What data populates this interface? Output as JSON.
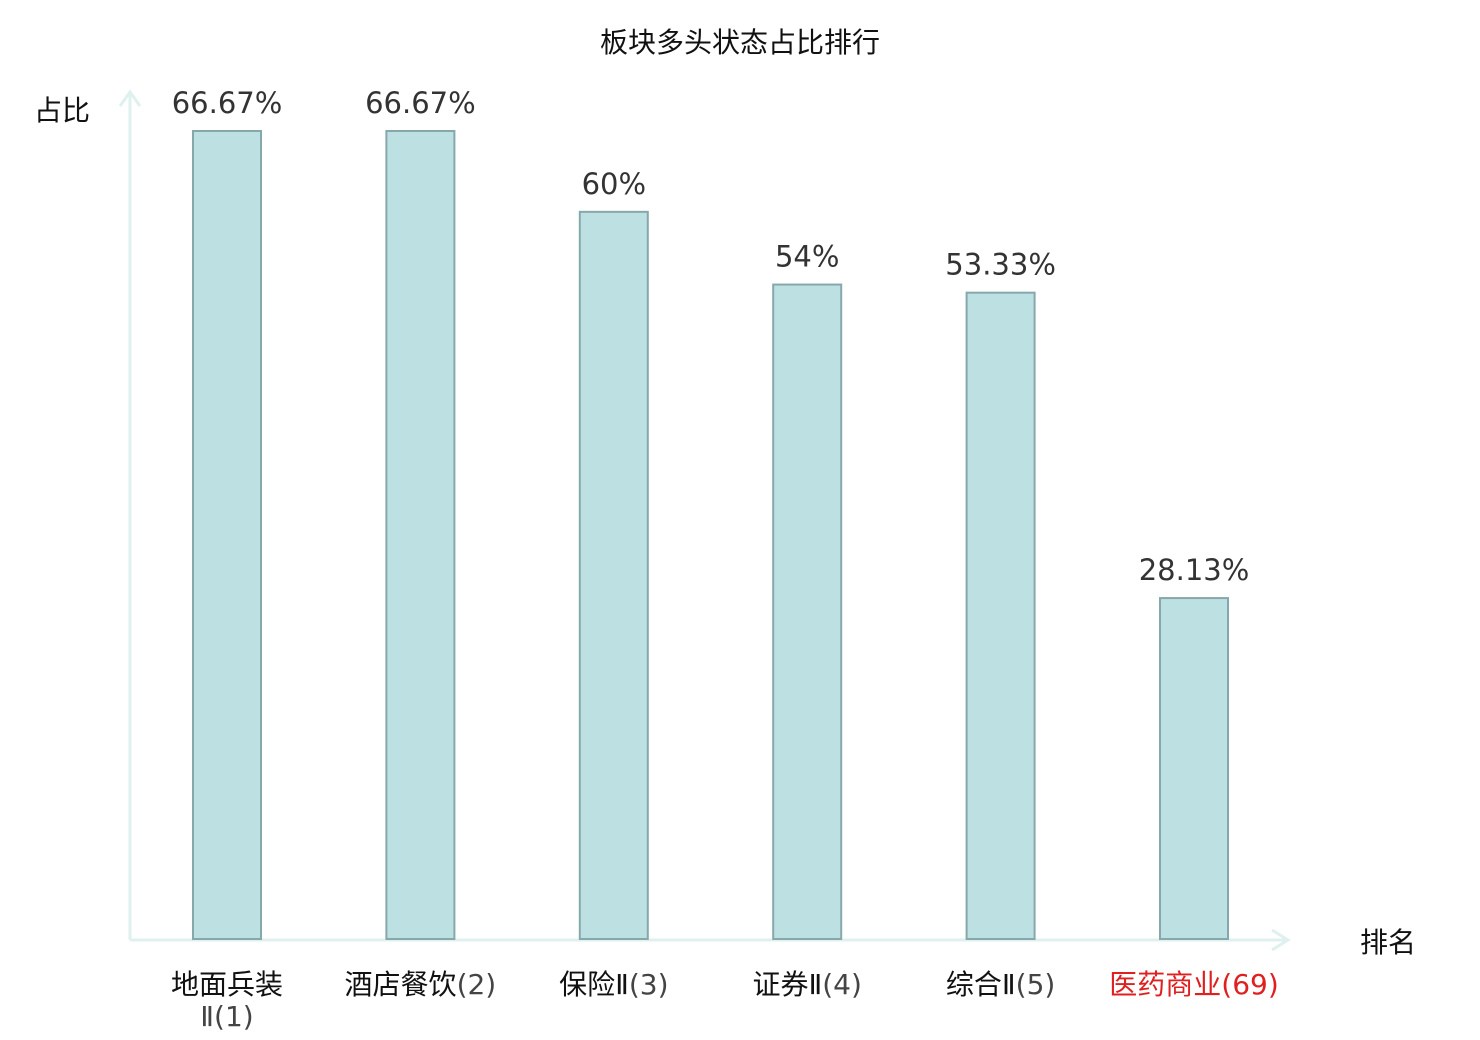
{
  "chart_data": {
    "type": "bar",
    "title": "板块多头状态占比排行",
    "ylabel": "占比",
    "xlabel": "排名",
    "ylim": [
      0,
      70
    ],
    "grid": false,
    "categories": [
      {
        "name": "地面兵装Ⅱ",
        "rank": "(1)",
        "highlight": false
      },
      {
        "name": "酒店餐饮",
        "rank": "(2)",
        "highlight": false
      },
      {
        "name": "保险Ⅱ",
        "rank": "(3)",
        "highlight": false
      },
      {
        "name": "证券Ⅱ",
        "rank": "(4)",
        "highlight": false
      },
      {
        "name": "综合Ⅱ",
        "rank": "(5)",
        "highlight": false
      },
      {
        "name": "医药商业",
        "rank": "(69)",
        "highlight": true
      }
    ],
    "values": [
      66.67,
      66.67,
      60,
      54,
      53.33,
      28.13
    ],
    "value_labels": [
      "66.67%",
      "66.67%",
      "60%",
      "54%",
      "53.33%",
      "28.13%"
    ],
    "colors": {
      "bar_fill": "#bde0e3",
      "bar_stroke": "#87a8ab",
      "axis": "#dff1ef",
      "highlight_text": "#e02020",
      "text": "#111111",
      "rank_text": "#444444",
      "value_text": "#333333"
    }
  }
}
